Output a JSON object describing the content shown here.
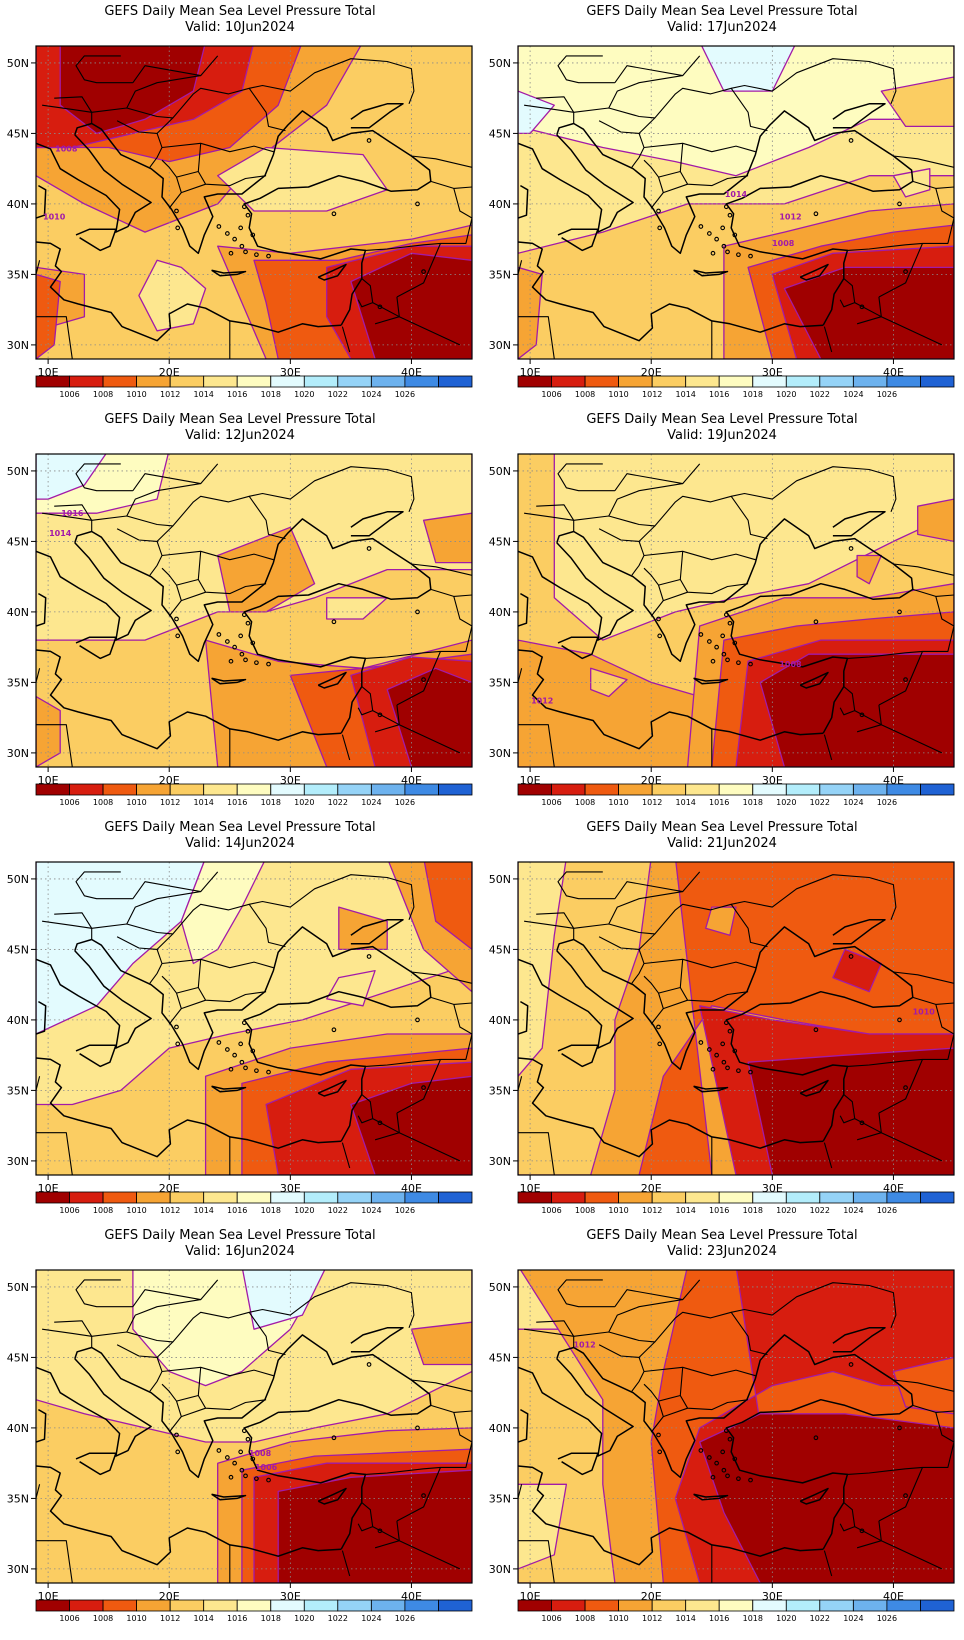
{
  "figure": {
    "title_prefix": "GEFS Daily Mean Sea Level Pressure Total",
    "valid_prefix": "Valid:",
    "lat_labels": [
      "50N",
      "45N",
      "40N",
      "35N",
      "30N"
    ],
    "lon_labels": [
      "10E",
      "20E",
      "30E",
      "40E"
    ],
    "colorbar": {
      "labels": [
        "1006",
        "1008",
        "1010",
        "1012",
        "1014",
        "1016",
        "1018",
        "1020",
        "1022",
        "1024",
        "1026"
      ],
      "colors": [
        "#a00000",
        "#d71d0f",
        "#ef5a10",
        "#f6a434",
        "#fbcd62",
        "#fde78f",
        "#fefcc0",
        "#e3fbfe",
        "#b3edfb",
        "#95d3f7",
        "#6db2ee",
        "#3e8ae4",
        "#1f62d4"
      ]
    },
    "contour_color": "#a21aa8",
    "panels": [
      {
        "valid": "10Jun2024",
        "contour_labels": [
          "1008",
          "1010"
        ]
      },
      {
        "valid": "17Jun2024",
        "contour_labels": [
          "1014",
          "1012",
          "1008"
        ]
      },
      {
        "valid": "12Jun2024",
        "contour_labels": [
          "1016",
          "1014"
        ]
      },
      {
        "valid": "19Jun2024",
        "contour_labels": [
          "1012",
          "1008"
        ]
      },
      {
        "valid": "14Jun2024",
        "contour_labels": []
      },
      {
        "valid": "21Jun2024",
        "contour_labels": [
          "1010"
        ]
      },
      {
        "valid": "16Jun2024",
        "contour_labels": [
          "1008",
          "1006"
        ]
      },
      {
        "valid": "23Jun2024",
        "contour_labels": [
          "1012"
        ]
      }
    ]
  }
}
